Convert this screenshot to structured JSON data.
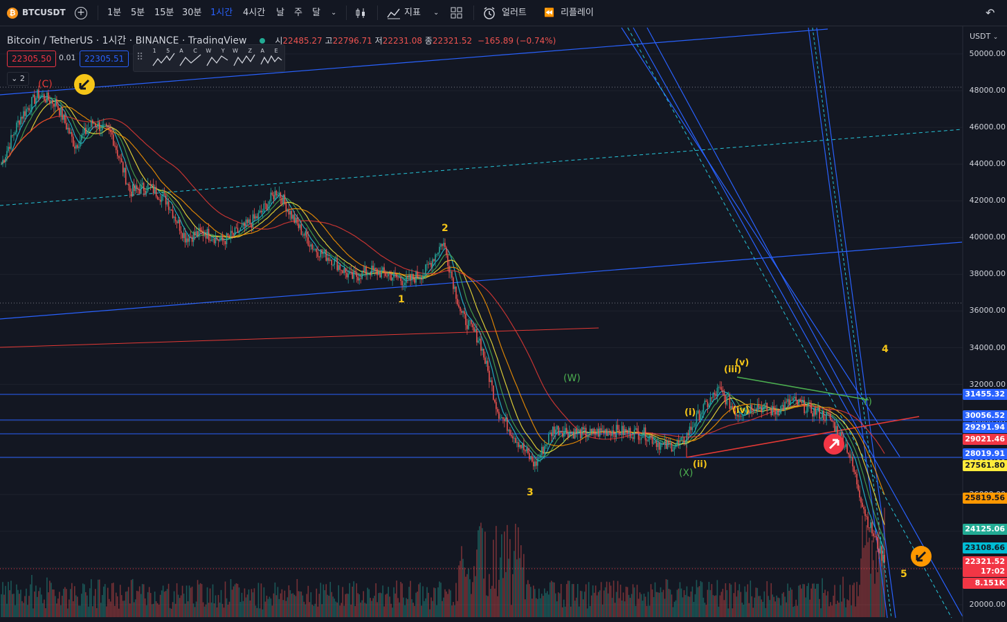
{
  "toolbar": {
    "symbol": "BTCUSDT",
    "intervals": [
      "1분",
      "5분",
      "15분",
      "30분",
      "1시간",
      "4시간",
      "날",
      "주",
      "달"
    ],
    "active_interval": "1시간",
    "indicators_label": "지표",
    "alert_label": "얼러트",
    "replay_label": "리플레이"
  },
  "legend": {
    "title": "Bitcoin / TetherUS · 1시간 · BINANCE · TradingView",
    "o_label": "시",
    "o": "22485.27",
    "h_label": "고",
    "h": "22796.71",
    "l_label": "저",
    "l": "22231.08",
    "c_label": "종",
    "c": "22321.52",
    "change": "−165.89 (−0.74%)",
    "sell_price": "22305.50",
    "spread": "0.01",
    "buy_price": "22305.51",
    "collapse_count": "2"
  },
  "wave_tools": [
    "1 5",
    "A C",
    "W Y",
    "W Z",
    "A E"
  ],
  "axis": {
    "currency": "USDT",
    "ticks": [
      "50000.00",
      "48000.00",
      "46000.00",
      "44000.00",
      "42000.00",
      "40000.00",
      "38000.00",
      "36000.00",
      "34000.00",
      "32000.00",
      "30000.00",
      "28000.00",
      "26000.00",
      "24000.00",
      "22000.00",
      "20000.00"
    ]
  },
  "price_tags": [
    {
      "value": "31455.32",
      "color": "#2962ff",
      "text_color": "#ffffff"
    },
    {
      "value": "30056.52",
      "color": "#2962ff",
      "text_color": "#ffffff"
    },
    {
      "value": "29291.94",
      "color": "#2962ff",
      "text_color": "#ffffff"
    },
    {
      "value": "29021.46",
      "color": "#f23645",
      "text_color": "#ffffff"
    },
    {
      "value": "28019.91",
      "color": "#2962ff",
      "text_color": "#ffffff"
    },
    {
      "value": "27561.80",
      "color": "#ffeb3b",
      "text_color": "#131722"
    },
    {
      "value": "25819.56",
      "color": "#ff9800",
      "text_color": "#131722"
    },
    {
      "value": "24125.06",
      "color": "#22ab94",
      "text_color": "#ffffff"
    },
    {
      "value": "23108.66",
      "color": "#00bcd4",
      "text_color": "#131722"
    },
    {
      "value": "22321.52",
      "color": "#f23645",
      "text_color": "#ffffff"
    },
    {
      "value": "17:02",
      "color": "#f23645",
      "text_color": "#ffffff"
    },
    {
      "value": "8.151K",
      "color": "#f23645",
      "text_color": "#ffffff"
    }
  ],
  "wave_labels": {
    "c_top": "(C)",
    "w1": "1",
    "w2": "2",
    "w3": "3",
    "w4": "4",
    "w5": "5",
    "W": "(W)",
    "X": "(X)",
    "Y": "Y)",
    "i": "(i)",
    "ii": "(ii)",
    "iii": "(iii)",
    "iv": "(iv)",
    "v": "(v)"
  },
  "colors": {
    "background": "#131722",
    "up": "#26a69a",
    "down": "#ef5350",
    "trend_blue": "#2962ff",
    "wave_yellow": "#f5c518",
    "wave_green": "#4caf50",
    "wave_red": "#e53935"
  },
  "chart_data": {
    "type": "candlestick",
    "symbol": "Bitcoin / TetherUS",
    "interval": "1시간",
    "ylim": [
      20000,
      50000
    ],
    "path_prices": [
      44000,
      46500,
      47800,
      47300,
      45000,
      46300,
      45600,
      42500,
      42800,
      42000,
      40000,
      40300,
      39800,
      40400,
      41200,
      42600,
      40800,
      39400,
      38800,
      37800,
      38200,
      38000,
      37600,
      38100,
      39800,
      35800,
      34400,
      30500,
      29000,
      27600,
      29600,
      29400,
      29300,
      29500,
      29400,
      29300,
      28600,
      28800,
      30500,
      31700,
      30400,
      30900,
      30500,
      31100,
      30600,
      30200,
      28500,
      24800,
      22300
    ],
    "last_close": 22321.52
  }
}
